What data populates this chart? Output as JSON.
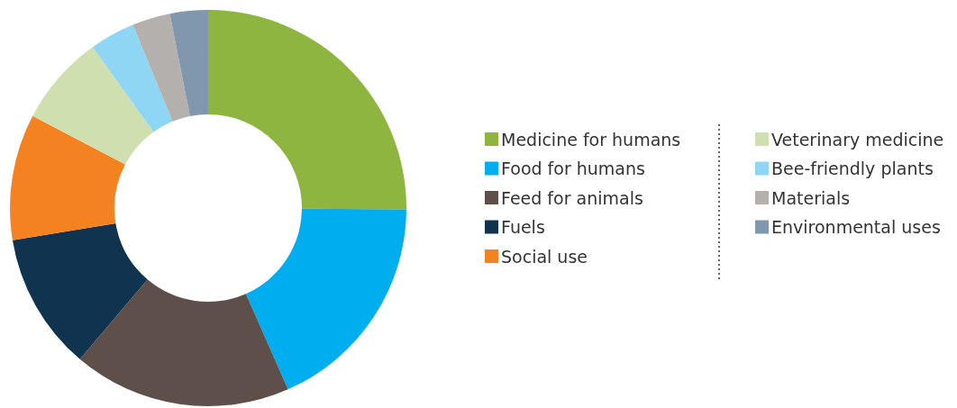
{
  "chart_data": {
    "type": "donut",
    "categories": [
      "Medicine for humans",
      "Food for humans",
      "Feed for animals",
      "Fuels",
      "Social use",
      "Veterinary medicine",
      "Bee-friendly plants",
      "Materials",
      "Environmental uses"
    ],
    "values": [
      25.1,
      18.3,
      17.8,
      11.2,
      10.3,
      7.4,
      3.7,
      3.1,
      3.1
    ],
    "colors": [
      "#8db53f",
      "#00aeef",
      "#5e4f4b",
      "#10344f",
      "#f58220",
      "#cfdfb0",
      "#8fd6f5",
      "#b3b0ae",
      "#8097ad"
    ],
    "legend": "right"
  }
}
